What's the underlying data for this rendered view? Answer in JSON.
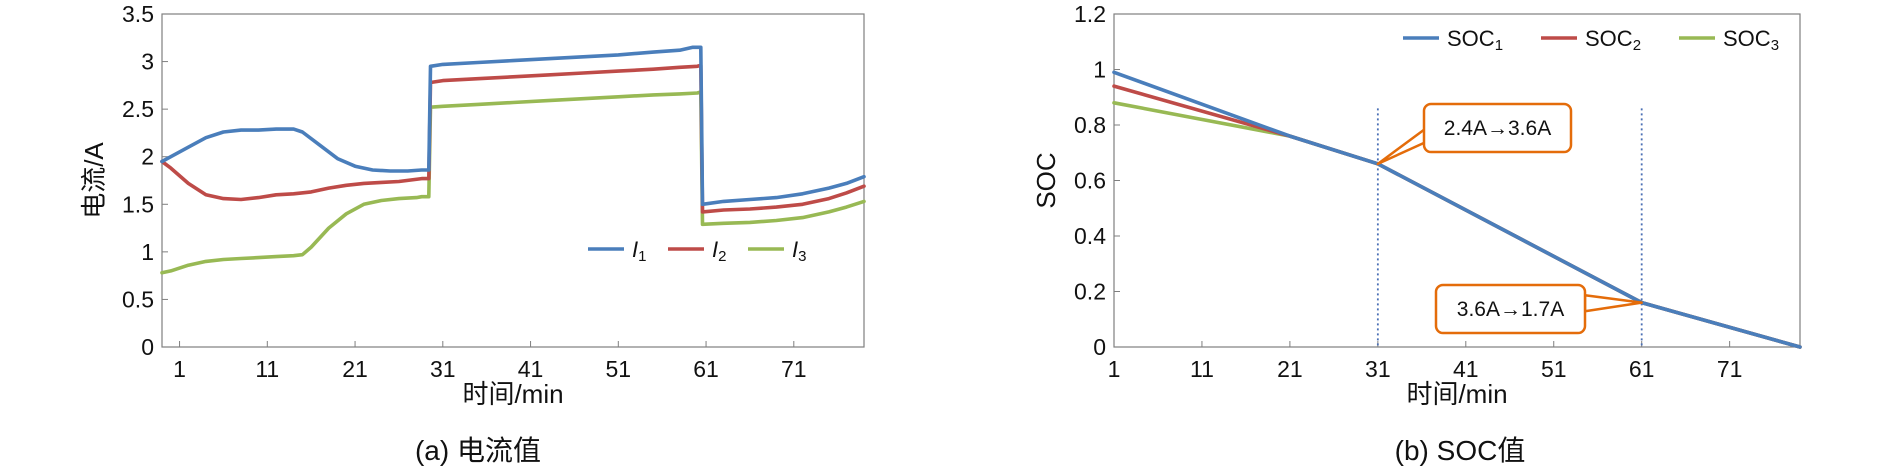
{
  "chart_data": [
    {
      "type": "line",
      "caption": "(a) 电流值",
      "xlabel": "时间/min",
      "ylabel": "电流/A",
      "xlim": [
        -1,
        79
      ],
      "ylim": [
        0,
        3.5
      ],
      "xticks": [
        "1",
        "11",
        "21",
        "31",
        "41",
        "51",
        "61",
        "71"
      ],
      "yticks": [
        "0",
        "0.5",
        "1",
        "1.5",
        "2",
        "2.5",
        "3",
        "3.5"
      ],
      "grid": false,
      "legend_position": "right-middle",
      "legend": [
        {
          "base": "I",
          "sub": "1",
          "color": "#4a7ebb"
        },
        {
          "base": "I",
          "sub": "2",
          "color": "#be4b48"
        },
        {
          "base": "I",
          "sub": "3",
          "color": "#98b954"
        }
      ],
      "series": [
        {
          "name": "I1",
          "color": "#4a7ebb",
          "points": [
            [
              -1,
              1.95
            ],
            [
              0,
              2.0
            ],
            [
              2,
              2.1
            ],
            [
              4,
              2.2
            ],
            [
              6,
              2.26
            ],
            [
              8,
              2.28
            ],
            [
              10,
              2.28
            ],
            [
              12,
              2.29
            ],
            [
              14,
              2.29
            ],
            [
              15,
              2.26
            ],
            [
              17,
              2.12
            ],
            [
              19,
              1.98
            ],
            [
              21,
              1.9
            ],
            [
              23,
              1.86
            ],
            [
              25,
              1.85
            ],
            [
              27,
              1.85
            ],
            [
              28.6,
              1.86
            ],
            [
              29.4,
              1.86
            ],
            [
              29.6,
              2.95
            ],
            [
              31,
              2.97
            ],
            [
              35,
              2.99
            ],
            [
              39,
              3.01
            ],
            [
              43,
              3.03
            ],
            [
              47,
              3.05
            ],
            [
              51,
              3.07
            ],
            [
              55,
              3.1
            ],
            [
              58,
              3.12
            ],
            [
              59.5,
              3.15
            ],
            [
              60,
              3.15
            ],
            [
              60.4,
              3.15
            ],
            [
              60.6,
              1.5
            ],
            [
              63,
              1.53
            ],
            [
              66,
              1.55
            ],
            [
              69,
              1.57
            ],
            [
              72,
              1.61
            ],
            [
              75,
              1.67
            ],
            [
              77,
              1.72
            ],
            [
              79,
              1.79
            ]
          ]
        },
        {
          "name": "I2",
          "color": "#be4b48",
          "points": [
            [
              -1,
              1.95
            ],
            [
              0,
              1.88
            ],
            [
              2,
              1.72
            ],
            [
              4,
              1.6
            ],
            [
              6,
              1.56
            ],
            [
              8,
              1.55
            ],
            [
              10,
              1.57
            ],
            [
              12,
              1.6
            ],
            [
              14,
              1.61
            ],
            [
              16,
              1.63
            ],
            [
              18,
              1.67
            ],
            [
              20,
              1.7
            ],
            [
              22,
              1.72
            ],
            [
              24,
              1.73
            ],
            [
              26,
              1.74
            ],
            [
              28.6,
              1.77
            ],
            [
              29.4,
              1.77
            ],
            [
              29.6,
              2.78
            ],
            [
              31,
              2.8
            ],
            [
              35,
              2.82
            ],
            [
              39,
              2.84
            ],
            [
              43,
              2.86
            ],
            [
              47,
              2.88
            ],
            [
              51,
              2.9
            ],
            [
              55,
              2.92
            ],
            [
              58,
              2.94
            ],
            [
              60,
              2.95
            ],
            [
              60.4,
              2.96
            ],
            [
              60.6,
              1.42
            ],
            [
              63,
              1.44
            ],
            [
              66,
              1.45
            ],
            [
              69,
              1.47
            ],
            [
              72,
              1.5
            ],
            [
              75,
              1.56
            ],
            [
              77,
              1.62
            ],
            [
              79,
              1.69
            ]
          ]
        },
        {
          "name": "I3",
          "color": "#98b954",
          "points": [
            [
              -1,
              0.78
            ],
            [
              0,
              0.8
            ],
            [
              2,
              0.86
            ],
            [
              4,
              0.9
            ],
            [
              6,
              0.92
            ],
            [
              8,
              0.93
            ],
            [
              10,
              0.94
            ],
            [
              12,
              0.95
            ],
            [
              14,
              0.96
            ],
            [
              15,
              0.97
            ],
            [
              16,
              1.05
            ],
            [
              18,
              1.25
            ],
            [
              20,
              1.4
            ],
            [
              22,
              1.5
            ],
            [
              24,
              1.54
            ],
            [
              26,
              1.56
            ],
            [
              28,
              1.57
            ],
            [
              28.6,
              1.58
            ],
            [
              29.4,
              1.58
            ],
            [
              29.6,
              2.52
            ],
            [
              31,
              2.53
            ],
            [
              35,
              2.55
            ],
            [
              39,
              2.57
            ],
            [
              43,
              2.59
            ],
            [
              47,
              2.61
            ],
            [
              51,
              2.63
            ],
            [
              55,
              2.65
            ],
            [
              58,
              2.66
            ],
            [
              60,
              2.67
            ],
            [
              60.4,
              2.68
            ],
            [
              60.6,
              1.29
            ],
            [
              63,
              1.3
            ],
            [
              66,
              1.31
            ],
            [
              69,
              1.33
            ],
            [
              72,
              1.36
            ],
            [
              75,
              1.42
            ],
            [
              77,
              1.47
            ],
            [
              79,
              1.53
            ]
          ]
        }
      ]
    },
    {
      "type": "line",
      "caption": "(b) SOC值",
      "xlabel": "时间/min",
      "ylabel": "SOC",
      "xlim": [
        1,
        79
      ],
      "ylim": [
        0,
        1.2
      ],
      "xticks": [
        "1",
        "11",
        "21",
        "31",
        "41",
        "51",
        "61",
        "71"
      ],
      "yticks": [
        "0",
        "0.2",
        "0.4",
        "0.6",
        "0.8",
        "1",
        "1.2"
      ],
      "grid": false,
      "legend_position": "top-right",
      "legend": [
        {
          "base": "SOC",
          "sub": "1",
          "color": "#4a7ebb"
        },
        {
          "base": "SOC",
          "sub": "2",
          "color": "#be4b48"
        },
        {
          "base": "SOC",
          "sub": "3",
          "color": "#98b954"
        }
      ],
      "vlines": [
        31,
        61
      ],
      "annotations": [
        {
          "text": "2.4A→3.6A",
          "point": [
            31,
            0.66
          ]
        },
        {
          "text": "3.6A→1.7A",
          "point": [
            61,
            0.16
          ]
        }
      ],
      "series": [
        {
          "name": "SOC1",
          "color": "#4a7ebb",
          "points": [
            [
              1,
              0.99
            ],
            [
              21,
              0.76
            ],
            [
              31,
              0.66
            ],
            [
              61,
              0.16
            ],
            [
              79,
              0.0
            ]
          ]
        },
        {
          "name": "SOC2",
          "color": "#be4b48",
          "points": [
            [
              1,
              0.94
            ],
            [
              21,
              0.76
            ],
            [
              31,
              0.66
            ],
            [
              61,
              0.16
            ],
            [
              79,
              0.0
            ]
          ]
        },
        {
          "name": "SOC3",
          "color": "#98b954",
          "points": [
            [
              1,
              0.88
            ],
            [
              21,
              0.76
            ],
            [
              31,
              0.66
            ],
            [
              61,
              0.16
            ],
            [
              79,
              0.0
            ]
          ]
        }
      ]
    }
  ]
}
